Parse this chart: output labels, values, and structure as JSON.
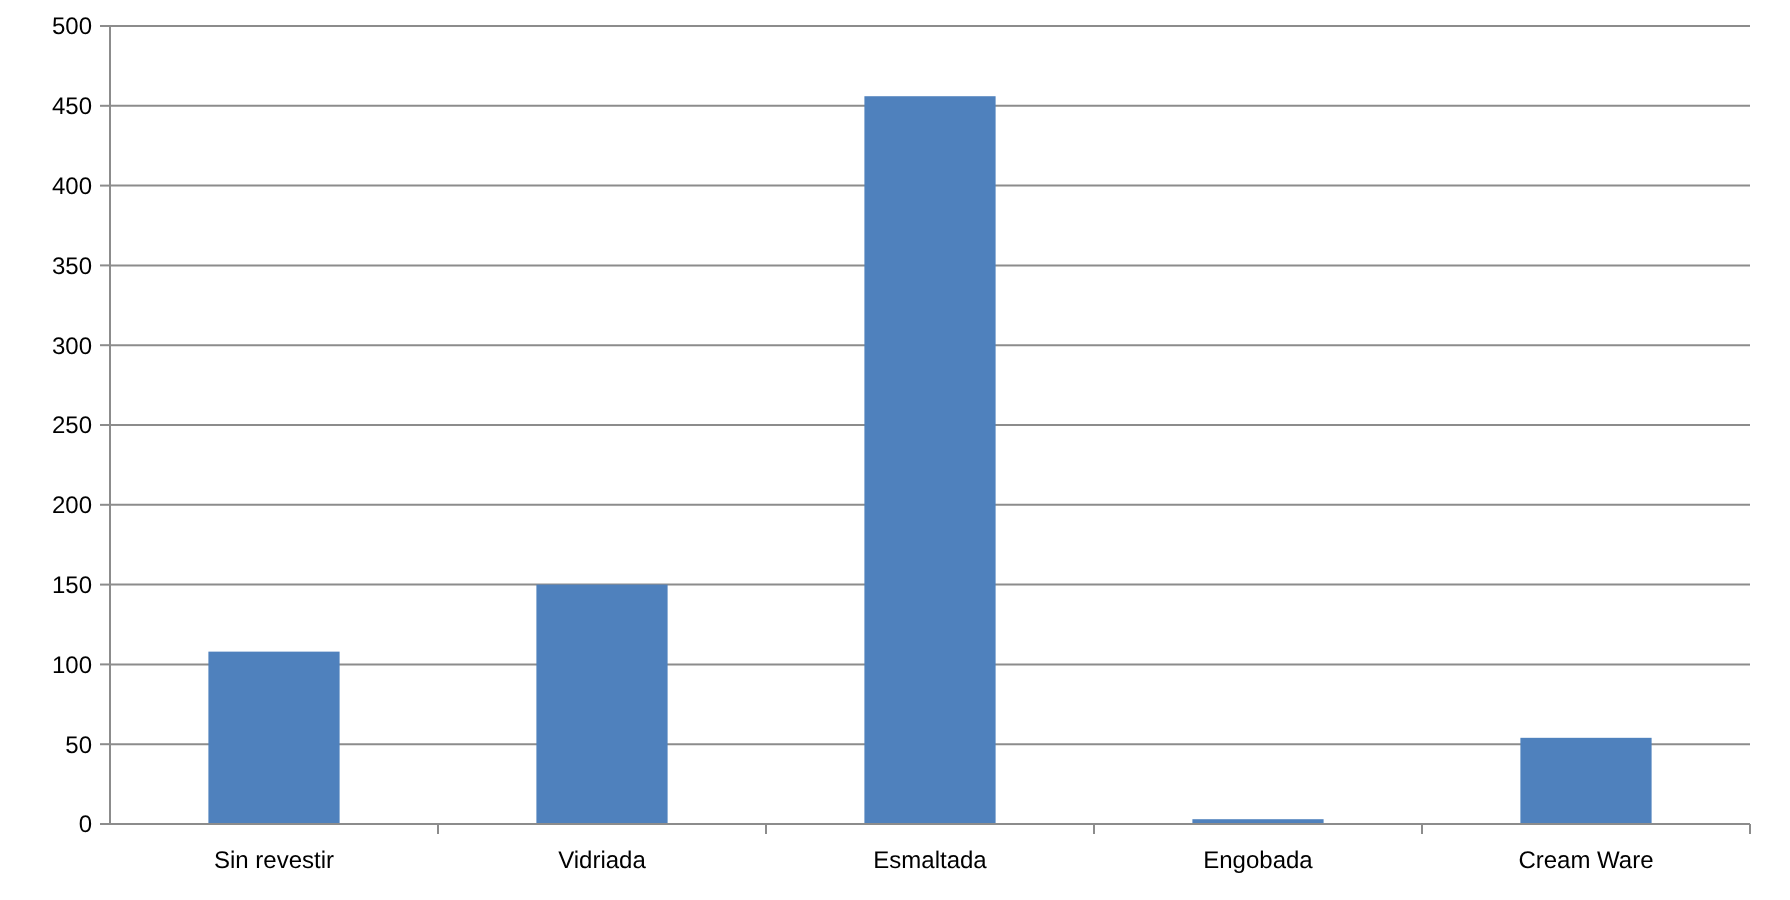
{
  "chart_data": {
    "type": "bar",
    "categories": [
      "Sin revestir",
      "Vidriada",
      "Esmaltada",
      "Engobada",
      "Cream Ware"
    ],
    "values": [
      108,
      150,
      456,
      3,
      54
    ],
    "color": "#4f81bd",
    "ylim": [
      0,
      500
    ],
    "yticks": [
      0,
      50,
      100,
      150,
      200,
      250,
      300,
      350,
      400,
      450,
      500
    ],
    "grid": "y"
  }
}
